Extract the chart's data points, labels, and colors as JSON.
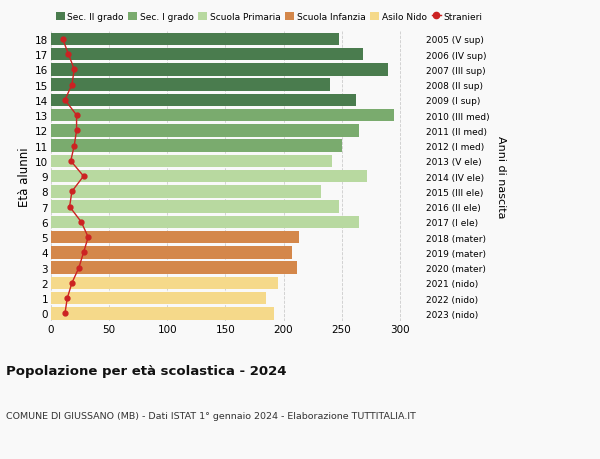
{
  "ages": [
    18,
    17,
    16,
    15,
    14,
    13,
    12,
    11,
    10,
    9,
    8,
    7,
    6,
    5,
    4,
    3,
    2,
    1,
    0
  ],
  "years": [
    "2005 (V sup)",
    "2006 (IV sup)",
    "2007 (III sup)",
    "2008 (II sup)",
    "2009 (I sup)",
    "2010 (III med)",
    "2011 (II med)",
    "2012 (I med)",
    "2013 (V ele)",
    "2014 (IV ele)",
    "2015 (III ele)",
    "2016 (II ele)",
    "2017 (I ele)",
    "2018 (mater)",
    "2019 (mater)",
    "2020 (mater)",
    "2021 (nido)",
    "2022 (nido)",
    "2023 (nido)"
  ],
  "bar_values": [
    248,
    268,
    290,
    240,
    262,
    295,
    265,
    250,
    242,
    272,
    232,
    248,
    265,
    213,
    207,
    212,
    195,
    185,
    192
  ],
  "bar_colors": [
    "#4a7c4e",
    "#4a7c4e",
    "#4a7c4e",
    "#4a7c4e",
    "#4a7c4e",
    "#7aab6e",
    "#7aab6e",
    "#7aab6e",
    "#b8d9a0",
    "#b8d9a0",
    "#b8d9a0",
    "#b8d9a0",
    "#b8d9a0",
    "#d4874a",
    "#d4874a",
    "#d4874a",
    "#f5d98a",
    "#f5d98a",
    "#f5d98a"
  ],
  "stranieri": [
    10,
    15,
    20,
    18,
    12,
    22,
    22,
    20,
    17,
    28,
    18,
    16,
    26,
    32,
    28,
    24,
    18,
    14,
    12
  ],
  "legend_labels": [
    "Sec. II grado",
    "Sec. I grado",
    "Scuola Primaria",
    "Scuola Infanzia",
    "Asilo Nido",
    "Stranieri"
  ],
  "legend_colors": [
    "#4a7c4e",
    "#7aab6e",
    "#b8d9a0",
    "#d4874a",
    "#f5d98a",
    "#cc2222"
  ],
  "ylabel": "Età alunni",
  "right_label": "Anni di nascita",
  "title": "Popolazione per età scolastica - 2024",
  "subtitle": "COMUNE DI GIUSSANO (MB) - Dati ISTAT 1° gennaio 2024 - Elaborazione TUTTITALIA.IT",
  "xlim": [
    0,
    320
  ],
  "xticks": [
    0,
    50,
    100,
    150,
    200,
    250,
    300
  ],
  "ylim": [
    -0.5,
    18.5
  ],
  "bg_color": "#f9f9f9",
  "grid_color": "#cccccc",
  "bar_height": 0.82
}
